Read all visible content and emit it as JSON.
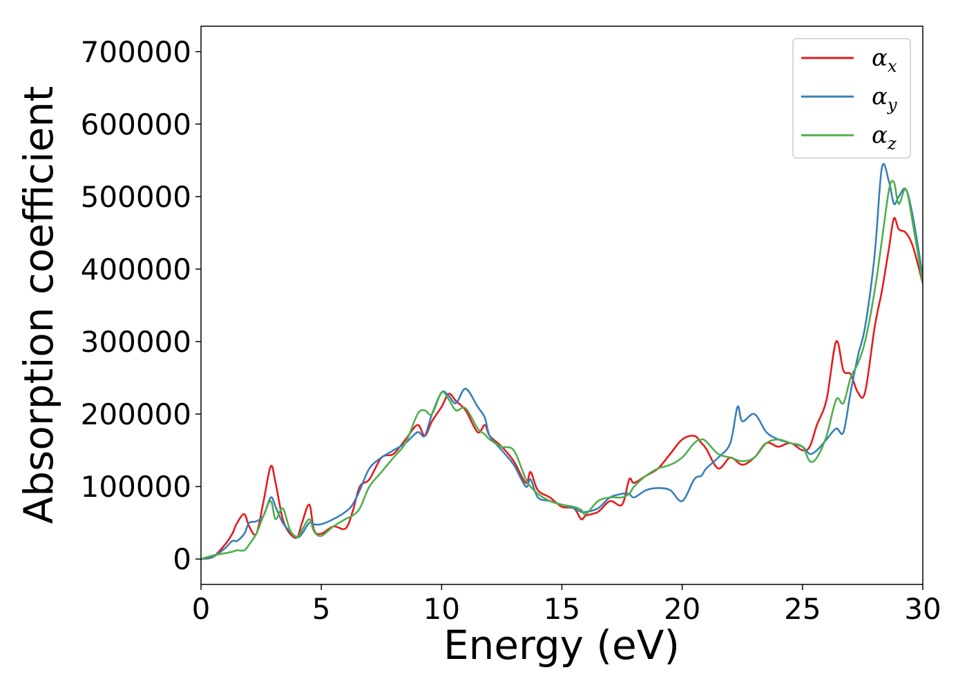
{
  "chart_data": {
    "type": "line",
    "title": "",
    "xlabel": "Energy (eV)",
    "ylabel": "Absorption coefficient",
    "xlim": [
      0,
      30
    ],
    "ylim": [
      -35000,
      735000
    ],
    "xticks": [
      0,
      5,
      10,
      15,
      20,
      25,
      30
    ],
    "yticks": [
      0,
      100000,
      200000,
      300000,
      400000,
      500000,
      600000,
      700000
    ],
    "grid": false,
    "legend_position": "top-right",
    "series": [
      {
        "name": "αx",
        "symbol": "α",
        "subscript": "x",
        "color": "#e41a1c",
        "x": [
          0,
          0.5,
          1.0,
          1.3,
          1.5,
          1.8,
          2.0,
          2.3,
          2.6,
          2.9,
          3.1,
          3.4,
          3.7,
          4.0,
          4.2,
          4.5,
          4.7,
          5.0,
          5.5,
          6.0,
          6.3,
          6.6,
          7.0,
          7.5,
          8.0,
          8.5,
          9.0,
          9.3,
          9.6,
          10.0,
          10.3,
          10.6,
          11.0,
          11.5,
          11.8,
          12.0,
          12.5,
          13.0,
          13.5,
          13.7,
          14.0,
          14.5,
          15.0,
          15.5,
          15.8,
          16.0,
          16.5,
          17.0,
          17.5,
          17.8,
          18.0,
          18.5,
          19.0,
          19.5,
          20.0,
          20.5,
          20.8,
          21.0,
          21.5,
          22.0,
          22.5,
          23.0,
          23.5,
          24.0,
          24.5,
          25.0,
          25.3,
          25.6,
          26.0,
          26.4,
          26.7,
          27.0,
          27.3,
          27.6,
          28.0,
          28.3,
          28.6,
          28.8,
          29.0,
          29.3,
          29.6,
          30.0
        ],
        "y": [
          0,
          3000,
          20000,
          35000,
          50000,
          62000,
          45000,
          35000,
          80000,
          128000,
          105000,
          55000,
          35000,
          30000,
          50000,
          75000,
          40000,
          35000,
          45000,
          42000,
          65000,
          100000,
          110000,
          140000,
          145000,
          165000,
          185000,
          170000,
          190000,
          210000,
          228000,
          218000,
          205000,
          175000,
          185000,
          170000,
          155000,
          135000,
          105000,
          120000,
          95000,
          85000,
          72000,
          70000,
          55000,
          60000,
          65000,
          80000,
          75000,
          110000,
          105000,
          115000,
          125000,
          145000,
          165000,
          170000,
          160000,
          152000,
          125000,
          140000,
          130000,
          140000,
          160000,
          155000,
          160000,
          150000,
          155000,
          185000,
          220000,
          300000,
          260000,
          255000,
          230000,
          230000,
          320000,
          370000,
          430000,
          470000,
          455000,
          450000,
          430000,
          380000
        ]
      },
      {
        "name": "αy",
        "symbol": "α",
        "subscript": "y",
        "color": "#377eb8",
        "x": [
          0,
          0.5,
          1.0,
          1.3,
          1.5,
          1.8,
          2.0,
          2.3,
          2.6,
          2.9,
          3.1,
          3.4,
          3.7,
          4.0,
          4.2,
          4.5,
          4.7,
          5.0,
          5.5,
          6.0,
          6.3,
          6.6,
          7.0,
          7.5,
          8.0,
          8.5,
          9.0,
          9.3,
          9.6,
          10.0,
          10.3,
          10.6,
          11.0,
          11.5,
          11.8,
          12.0,
          12.5,
          13.0,
          13.5,
          13.7,
          14.0,
          14.5,
          15.0,
          15.5,
          15.8,
          16.0,
          16.5,
          17.0,
          17.5,
          17.8,
          18.0,
          18.5,
          19.0,
          19.5,
          20.0,
          20.5,
          20.8,
          21.0,
          21.5,
          22.0,
          22.3,
          22.5,
          23.0,
          23.5,
          24.0,
          24.5,
          25.0,
          25.3,
          25.6,
          26.0,
          26.4,
          26.7,
          27.0,
          27.3,
          27.6,
          28.0,
          28.3,
          28.6,
          28.8,
          29.0,
          29.3,
          29.6,
          30.0
        ],
        "y": [
          0,
          3000,
          15000,
          25000,
          25000,
          35000,
          50000,
          52000,
          60000,
          85000,
          72000,
          50000,
          38000,
          30000,
          35000,
          50000,
          48000,
          48000,
          55000,
          65000,
          75000,
          95000,
          125000,
          140000,
          150000,
          160000,
          175000,
          170000,
          200000,
          230000,
          225000,
          215000,
          235000,
          210000,
          195000,
          170000,
          150000,
          130000,
          100000,
          110000,
          85000,
          80000,
          75000,
          70000,
          65000,
          65000,
          70000,
          85000,
          90000,
          90000,
          85000,
          95000,
          98000,
          95000,
          80000,
          110000,
          115000,
          125000,
          140000,
          160000,
          210000,
          190000,
          200000,
          175000,
          165000,
          160000,
          155000,
          145000,
          150000,
          165000,
          180000,
          175000,
          230000,
          280000,
          320000,
          420000,
          540000,
          520000,
          490000,
          500000,
          510000,
          470000,
          390000
        ]
      },
      {
        "name": "αz",
        "symbol": "α",
        "subscript": "z",
        "color": "#4daf4a",
        "x": [
          0,
          0.5,
          1.0,
          1.3,
          1.5,
          1.8,
          2.0,
          2.3,
          2.6,
          2.9,
          3.1,
          3.4,
          3.7,
          4.0,
          4.2,
          4.5,
          4.7,
          5.0,
          5.5,
          6.0,
          6.3,
          6.6,
          7.0,
          7.5,
          8.0,
          8.5,
          9.0,
          9.3,
          9.6,
          10.0,
          10.3,
          10.6,
          11.0,
          11.5,
          11.8,
          12.0,
          12.5,
          13.0,
          13.5,
          13.7,
          14.0,
          14.5,
          15.0,
          15.5,
          15.8,
          16.0,
          16.5,
          17.0,
          17.5,
          17.8,
          18.0,
          18.5,
          19.0,
          19.5,
          20.0,
          20.5,
          20.8,
          21.0,
          21.5,
          22.0,
          22.5,
          23.0,
          23.5,
          24.0,
          24.5,
          25.0,
          25.3,
          25.6,
          26.0,
          26.4,
          26.7,
          27.0,
          27.3,
          27.6,
          28.0,
          28.3,
          28.6,
          28.8,
          29.0,
          29.3,
          29.6,
          30.0
        ],
        "y": [
          0,
          5000,
          8000,
          10000,
          12000,
          12000,
          20000,
          35000,
          60000,
          80000,
          55000,
          70000,
          40000,
          30000,
          40000,
          55000,
          38000,
          32000,
          45000,
          55000,
          60000,
          70000,
          100000,
          120000,
          140000,
          160000,
          200000,
          205000,
          200000,
          230000,
          220000,
          205000,
          208000,
          180000,
          172000,
          165000,
          155000,
          150000,
          110000,
          100000,
          90000,
          80000,
          75000,
          72000,
          68000,
          62000,
          80000,
          85000,
          85000,
          90000,
          100000,
          115000,
          125000,
          130000,
          140000,
          160000,
          165000,
          162000,
          145000,
          140000,
          135000,
          140000,
          160000,
          165000,
          160000,
          155000,
          135000,
          140000,
          170000,
          220000,
          215000,
          250000,
          270000,
          300000,
          370000,
          440000,
          510000,
          520000,
          490000,
          510000,
          460000,
          380000
        ]
      }
    ]
  }
}
